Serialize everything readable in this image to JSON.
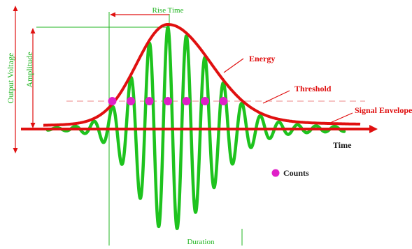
{
  "labels": {
    "rise_time": "Rise Time",
    "amplitude": "Amplitude",
    "output_voltage": "Output Voltage",
    "energy": "Energy",
    "threshold": "Threshold",
    "signal_envelope": "Signal Envelope",
    "time": "Time",
    "counts": "Counts",
    "duration": "Duration"
  },
  "colors": {
    "signal": "#1ec31e",
    "envelope": "#e01010",
    "counts": "#e020c8",
    "annotation": "#22b522",
    "axis": "#e01010"
  },
  "counts_shown": 7
}
